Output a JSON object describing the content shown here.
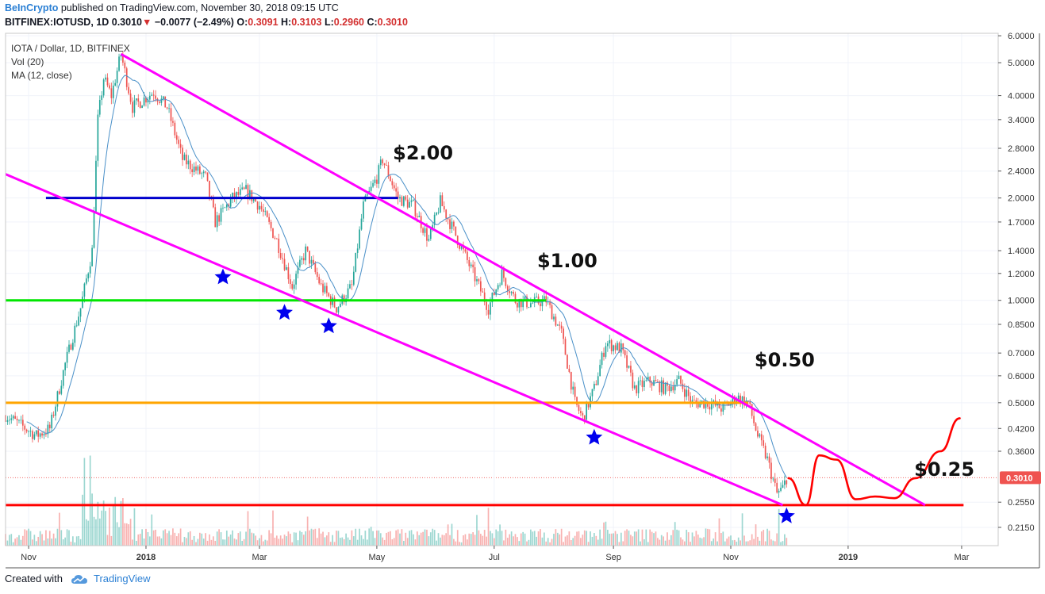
{
  "header": {
    "brand": "BeInCrypto",
    "published": "published on TradingView.com, November 30, 2018 09:15 UTC",
    "symbol": "BITFINEX:IOTUSD, 1D",
    "last": "0.3010",
    "change": "−0.0077 (−2.49%)",
    "o_label": "O:",
    "o_value": "0.3091",
    "h_label": "H:",
    "h_value": "0.3103",
    "l_label": "L:",
    "l_value": "0.2960",
    "c_label": "C:",
    "c_value": "0.3010"
  },
  "legend": {
    "title": "IOTA / Dollar, 1D, BITFINEX",
    "vol": "Vol (20)",
    "ma": "MA (12, close)"
  },
  "footer": {
    "created_with": "Created with",
    "brand": "TradingView"
  },
  "colors": {
    "up": "#26a69a",
    "down": "#ef5350",
    "ma": "#4a90c8",
    "channel": "#ff00ff",
    "level_blue": "#0000cc",
    "level_green": "#00e600",
    "level_orange": "#ffa500",
    "level_red": "#ff0000",
    "star": "#0000ee"
  },
  "chart_data": {
    "type": "candlestick",
    "scale": "log",
    "y_ticks": [
      "6.0000",
      "5.0000",
      "4.0000",
      "3.4000",
      "2.8000",
      "2.4000",
      "2.0000",
      "1.7000",
      "1.4000",
      "1.2000",
      "1.0000",
      "0.8500",
      "0.7000",
      "0.6000",
      "0.5000",
      "0.4200",
      "0.3600",
      "0.3010",
      "0.2550",
      "0.2150"
    ],
    "current_price": "0.3010",
    "x_ticks": [
      "Nov",
      "2018",
      "Mar",
      "May",
      "Jul",
      "Sep",
      "Nov",
      "2019",
      "Mar"
    ],
    "x_range": [
      "2017-10-20",
      "2019-03-20"
    ],
    "ylim": [
      0.19,
      6.1
    ],
    "price_path": [
      [
        "2017-10-20",
        0.46
      ],
      [
        "2017-11-05",
        0.4
      ],
      [
        "2017-11-12",
        0.42
      ],
      [
        "2017-11-20",
        0.65
      ],
      [
        "2017-11-28",
        0.95
      ],
      [
        "2017-12-04",
        1.4
      ],
      [
        "2017-12-07",
        3.4
      ],
      [
        "2017-12-10",
        4.5
      ],
      [
        "2017-12-14",
        4.0
      ],
      [
        "2017-12-19",
        5.3
      ],
      [
        "2017-12-25",
        3.7
      ],
      [
        "2018-01-05",
        4.1
      ],
      [
        "2018-01-12",
        3.7
      ],
      [
        "2018-01-20",
        2.6
      ],
      [
        "2018-02-01",
        2.3
      ],
      [
        "2018-02-06",
        1.7
      ],
      [
        "2018-02-15",
        2.0
      ],
      [
        "2018-02-22",
        2.1
      ],
      [
        "2018-03-01",
        1.9
      ],
      [
        "2018-03-10",
        1.5
      ],
      [
        "2018-03-18",
        1.1
      ],
      [
        "2018-03-25",
        1.4
      ],
      [
        "2018-04-02",
        1.1
      ],
      [
        "2018-04-10",
        0.95
      ],
      [
        "2018-04-18",
        1.1
      ],
      [
        "2018-04-24",
        1.9
      ],
      [
        "2018-05-01",
        2.3
      ],
      [
        "2018-05-04",
        2.6
      ],
      [
        "2018-05-12",
        2.0
      ],
      [
        "2018-05-20",
        1.9
      ],
      [
        "2018-05-28",
        1.5
      ],
      [
        "2018-06-03",
        1.95
      ],
      [
        "2018-06-10",
        1.6
      ],
      [
        "2018-06-20",
        1.2
      ],
      [
        "2018-06-28",
        0.95
      ],
      [
        "2018-07-05",
        1.2
      ],
      [
        "2018-07-12",
        1.0
      ],
      [
        "2018-07-20",
        0.98
      ],
      [
        "2018-07-28",
        1.0
      ],
      [
        "2018-08-05",
        0.8
      ],
      [
        "2018-08-12",
        0.5
      ],
      [
        "2018-08-16",
        0.45
      ],
      [
        "2018-08-22",
        0.55
      ],
      [
        "2018-08-28",
        0.75
      ],
      [
        "2018-09-05",
        0.72
      ],
      [
        "2018-09-12",
        0.55
      ],
      [
        "2018-09-20",
        0.58
      ],
      [
        "2018-09-28",
        0.55
      ],
      [
        "2018-10-05",
        0.58
      ],
      [
        "2018-10-12",
        0.5
      ],
      [
        "2018-10-20",
        0.5
      ],
      [
        "2018-10-28",
        0.48
      ],
      [
        "2018-11-04",
        0.52
      ],
      [
        "2018-11-10",
        0.5
      ],
      [
        "2018-11-15",
        0.4
      ],
      [
        "2018-11-20",
        0.34
      ],
      [
        "2018-11-25",
        0.27
      ],
      [
        "2018-11-28",
        0.28
      ],
      [
        "2018-11-30",
        0.301
      ]
    ],
    "levels": [
      {
        "value": 2.0,
        "color": "#0000cc",
        "from": "2017-11-10",
        "to": "2018-05-12"
      },
      {
        "value": 1.0,
        "color": "#00e600",
        "from": "2017-10-20",
        "to": "2018-07-28"
      },
      {
        "value": 0.5,
        "color": "#ffa500",
        "from": "2017-10-20",
        "to": "2018-11-10"
      },
      {
        "value": 0.25,
        "color": "#ff0000",
        "from": "2017-10-20",
        "to": "2019-03-02"
      }
    ],
    "channel_lines": [
      {
        "from": [
          "2017-12-19",
          5.3
        ],
        "to": [
          "2019-02-10",
          0.25
        ]
      },
      {
        "from": [
          "2017-10-20",
          2.35
        ],
        "to": [
          "2018-11-28",
          0.25
        ]
      }
    ],
    "annotations": [
      {
        "text": "$2.00",
        "at": [
          "2018-05-25",
          2.6
        ]
      },
      {
        "text": "$1.00",
        "at": [
          "2018-08-08",
          1.25
        ]
      },
      {
        "text": "$0.50",
        "at": [
          "2018-11-29",
          0.64
        ]
      },
      {
        "text": "$0.25",
        "at": [
          "2019-02-20",
          0.305
        ]
      }
    ],
    "stars": [
      [
        "2018-02-10",
        1.17
      ],
      [
        "2018-03-14",
        0.92
      ],
      [
        "2018-04-06",
        0.84
      ],
      [
        "2018-08-22",
        0.395
      ],
      [
        "2018-11-30",
        0.232
      ]
    ],
    "projection": [
      [
        "2018-12-01",
        0.3
      ],
      [
        "2018-12-10",
        0.25
      ],
      [
        "2018-12-17",
        0.35
      ],
      [
        "2018-12-26",
        0.34
      ],
      [
        "2019-01-05",
        0.26
      ],
      [
        "2019-01-15",
        0.265
      ],
      [
        "2019-01-25",
        0.262
      ],
      [
        "2019-02-05",
        0.3
      ],
      [
        "2019-02-18",
        0.36
      ],
      [
        "2019-02-28",
        0.45
      ]
    ]
  }
}
